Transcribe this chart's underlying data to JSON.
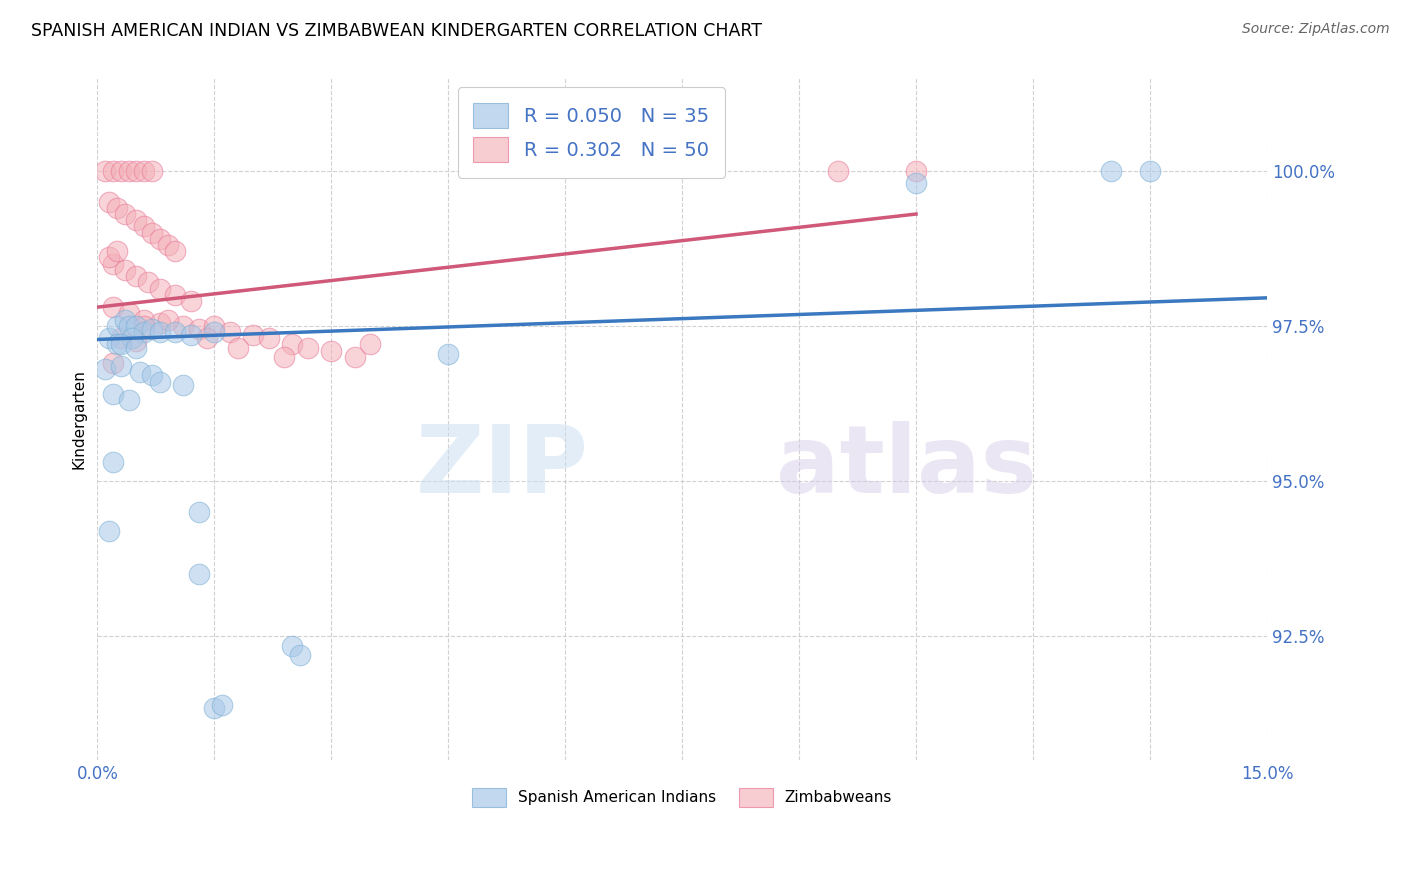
{
  "title": "SPANISH AMERICAN INDIAN VS ZIMBABWEAN KINDERGARTEN CORRELATION CHART",
  "source": "Source: ZipAtlas.com",
  "ylabel": "Kindergarten",
  "xlim": [
    0.0,
    15.0
  ],
  "ylim": [
    90.5,
    101.5
  ],
  "ytick_labels": [
    "92.5%",
    "95.0%",
    "97.5%",
    "100.0%"
  ],
  "ytick_values": [
    92.5,
    95.0,
    97.5,
    100.0
  ],
  "xtick_values": [
    0.0,
    1.5,
    3.0,
    4.5,
    6.0,
    7.5,
    9.0,
    10.5,
    12.0,
    13.5,
    15.0
  ],
  "legend_color1": "#a8c8e8",
  "legend_color2": "#f4b8c0",
  "blue_color": "#a8c8e8",
  "pink_color": "#f4b0b8",
  "blue_edge_color": "#7aafd4",
  "pink_edge_color": "#e87898",
  "blue_line_color": "#3a78c0",
  "pink_line_color": "#d05878",
  "watermark_zip": "ZIP",
  "watermark_atlas": "atlas",
  "blue_scatter": [
    [
      0.15,
      97.3
    ],
    [
      0.25,
      97.5
    ],
    [
      0.35,
      97.6
    ],
    [
      0.4,
      97.5
    ],
    [
      0.5,
      97.5
    ],
    [
      0.6,
      97.4
    ],
    [
      0.7,
      97.45
    ],
    [
      0.8,
      97.4
    ],
    [
      0.25,
      97.2
    ],
    [
      0.45,
      97.3
    ],
    [
      1.0,
      97.4
    ],
    [
      1.2,
      97.35
    ],
    [
      1.5,
      97.4
    ],
    [
      0.3,
      97.2
    ],
    [
      0.5,
      97.15
    ],
    [
      0.1,
      96.8
    ],
    [
      0.3,
      96.85
    ],
    [
      0.55,
      96.75
    ],
    [
      0.7,
      96.7
    ],
    [
      0.8,
      96.6
    ],
    [
      1.1,
      96.55
    ],
    [
      0.2,
      96.4
    ],
    [
      0.4,
      96.3
    ],
    [
      0.2,
      95.3
    ],
    [
      0.15,
      94.2
    ],
    [
      1.3,
      94.5
    ],
    [
      1.3,
      93.5
    ],
    [
      2.5,
      92.35
    ],
    [
      2.6,
      92.2
    ],
    [
      1.5,
      91.35
    ],
    [
      1.6,
      91.4
    ],
    [
      4.5,
      97.05
    ],
    [
      13.0,
      100.0
    ],
    [
      13.5,
      100.0
    ],
    [
      10.5,
      99.8
    ]
  ],
  "pink_scatter": [
    [
      0.1,
      100.0
    ],
    [
      0.2,
      100.0
    ],
    [
      0.3,
      100.0
    ],
    [
      0.4,
      100.0
    ],
    [
      0.5,
      100.0
    ],
    [
      0.6,
      100.0
    ],
    [
      0.7,
      100.0
    ],
    [
      0.15,
      99.5
    ],
    [
      0.25,
      99.4
    ],
    [
      0.35,
      99.3
    ],
    [
      0.5,
      99.2
    ],
    [
      0.6,
      99.1
    ],
    [
      0.7,
      99.0
    ],
    [
      0.8,
      98.9
    ],
    [
      0.9,
      98.8
    ],
    [
      1.0,
      98.7
    ],
    [
      0.2,
      98.5
    ],
    [
      0.35,
      98.4
    ],
    [
      0.5,
      98.3
    ],
    [
      0.65,
      98.2
    ],
    [
      0.8,
      98.1
    ],
    [
      1.0,
      98.0
    ],
    [
      1.2,
      97.9
    ],
    [
      0.2,
      97.8
    ],
    [
      0.4,
      97.7
    ],
    [
      0.6,
      97.6
    ],
    [
      0.8,
      97.55
    ],
    [
      1.1,
      97.5
    ],
    [
      1.3,
      97.45
    ],
    [
      1.5,
      97.5
    ],
    [
      1.7,
      97.4
    ],
    [
      2.0,
      97.35
    ],
    [
      2.2,
      97.3
    ],
    [
      2.5,
      97.2
    ],
    [
      2.7,
      97.15
    ],
    [
      3.0,
      97.1
    ],
    [
      3.3,
      97.0
    ],
    [
      0.3,
      97.3
    ],
    [
      0.5,
      97.25
    ],
    [
      0.2,
      96.9
    ],
    [
      1.8,
      97.15
    ],
    [
      2.4,
      97.0
    ],
    [
      3.5,
      97.2
    ],
    [
      0.15,
      98.6
    ],
    [
      0.25,
      98.7
    ],
    [
      9.5,
      100.0
    ],
    [
      10.5,
      100.0
    ],
    [
      0.6,
      97.5
    ],
    [
      0.9,
      97.6
    ],
    [
      1.4,
      97.3
    ]
  ],
  "blue_regression": [
    0.0,
    15.0,
    97.28,
    97.95
  ],
  "pink_regression": [
    0.0,
    10.5,
    97.8,
    99.3
  ]
}
